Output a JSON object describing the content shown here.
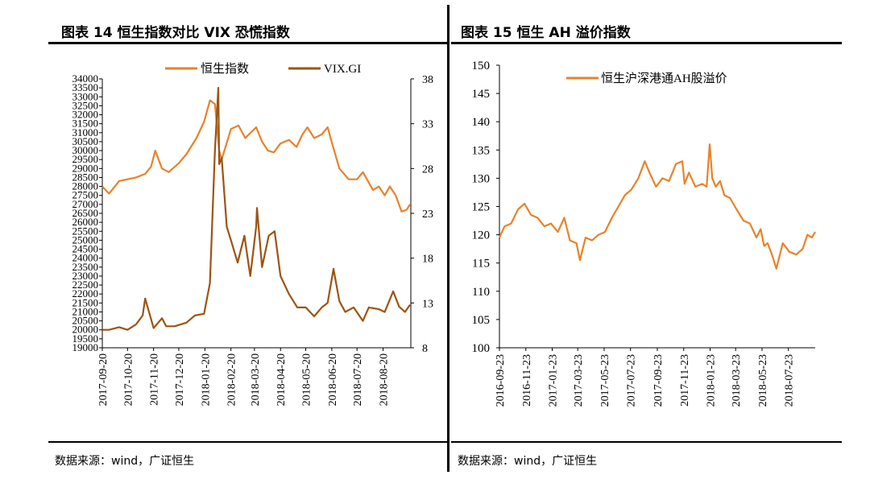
{
  "left": {
    "title": "图表 14 恒生指数对比 VIX 恐慌指数",
    "source": "数据来源：wind，广证恒生"
  },
  "right": {
    "title": "图表 15 恒生 AH 溢价指数",
    "source": "数据来源：wind，广证恒生"
  },
  "chart_data": [
    {
      "type": "line",
      "title": "",
      "x_ticks": [
        "2017-09-20",
        "2017-10-20",
        "2017-11-20",
        "2017-12-20",
        "2018-01-20",
        "2018-02-20",
        "2018-03-20",
        "2018-04-20",
        "2018-05-20",
        "2018-06-20",
        "2018-07-20",
        "2018-08-20"
      ],
      "y_left_ticks": [
        34000,
        33500,
        33000,
        32500,
        32000,
        31500,
        31000,
        30500,
        30000,
        29500,
        29000,
        28500,
        28000,
        27500,
        27000,
        26500,
        26000,
        25500,
        25000,
        24500,
        24000,
        23500,
        23000,
        22500,
        22000,
        21500,
        21000,
        20500,
        20000,
        19500,
        19000
      ],
      "y_left_range": [
        19000,
        34000
      ],
      "y_right_ticks": [
        38,
        33,
        28,
        23,
        18,
        13,
        8
      ],
      "y_right_range": [
        8,
        38
      ],
      "legend_position": "top",
      "series": [
        {
          "name": "恒生指数",
          "axis": "left",
          "color": "#E8822A",
          "x": [
            "2017-09-20",
            "2017-09-28",
            "2017-10-10",
            "2017-10-20",
            "2017-10-30",
            "2017-11-10",
            "2017-11-17",
            "2017-11-22",
            "2017-11-30",
            "2017-12-08",
            "2017-12-20",
            "2017-12-29",
            "2018-01-10",
            "2018-01-19",
            "2018-01-26",
            "2018-02-01",
            "2018-02-06",
            "2018-02-09",
            "2018-02-20",
            "2018-03-01",
            "2018-03-09",
            "2018-03-22",
            "2018-03-29",
            "2018-04-05",
            "2018-04-12",
            "2018-04-20",
            "2018-04-30",
            "2018-05-09",
            "2018-05-16",
            "2018-05-22",
            "2018-05-30",
            "2018-06-08",
            "2018-06-15",
            "2018-06-21",
            "2018-06-29",
            "2018-07-10",
            "2018-07-20",
            "2018-07-27",
            "2018-08-08",
            "2018-08-15",
            "2018-08-22",
            "2018-08-28",
            "2018-09-04",
            "2018-09-11",
            "2018-09-17",
            "2018-09-21"
          ],
          "y": [
            28000,
            27600,
            28300,
            28400,
            28500,
            28700,
            29100,
            30000,
            29000,
            28800,
            29300,
            29800,
            30700,
            31600,
            32800,
            32600,
            30000,
            29500,
            31200,
            31400,
            30700,
            31300,
            30500,
            30000,
            29900,
            30400,
            30600,
            30200,
            30900,
            31300,
            30700,
            30900,
            31300,
            30300,
            29000,
            28400,
            28400,
            28800,
            27800,
            28000,
            27500,
            28000,
            27500,
            26600,
            26700,
            27000
          ]
        },
        {
          "name": "VIX.GI",
          "axis": "right",
          "color": "#9C5412",
          "x": [
            "2017-09-20",
            "2017-09-28",
            "2017-10-10",
            "2017-10-20",
            "2017-10-30",
            "2017-11-07",
            "2017-11-10",
            "2017-11-20",
            "2017-11-30",
            "2017-12-05",
            "2017-12-15",
            "2017-12-29",
            "2018-01-08",
            "2018-01-19",
            "2018-01-26",
            "2018-02-01",
            "2018-02-05",
            "2018-02-06",
            "2018-02-09",
            "2018-02-15",
            "2018-02-20",
            "2018-02-28",
            "2018-03-08",
            "2018-03-15",
            "2018-03-22",
            "2018-03-23",
            "2018-03-29",
            "2018-04-06",
            "2018-04-13",
            "2018-04-20",
            "2018-04-30",
            "2018-05-10",
            "2018-05-20",
            "2018-05-30",
            "2018-06-08",
            "2018-06-15",
            "2018-06-22",
            "2018-06-29",
            "2018-07-06",
            "2018-07-16",
            "2018-07-27",
            "2018-08-03",
            "2018-08-15",
            "2018-08-22",
            "2018-09-01",
            "2018-09-08",
            "2018-09-15",
            "2018-09-21"
          ],
          "y": [
            10.0,
            10.0,
            10.3,
            10.0,
            10.6,
            11.6,
            13.5,
            10.2,
            11.3,
            10.4,
            10.4,
            10.8,
            11.6,
            11.8,
            15.2,
            30.0,
            37.0,
            28.5,
            29.2,
            21.5,
            20.0,
            17.5,
            20.5,
            16.0,
            21.5,
            23.6,
            17.0,
            20.5,
            21.0,
            16.0,
            14.0,
            12.5,
            12.5,
            11.5,
            12.5,
            13.0,
            16.8,
            13.2,
            12.0,
            12.5,
            11.0,
            12.5,
            12.3,
            12.0,
            14.3,
            12.6,
            12.0,
            12.8
          ]
        }
      ]
    },
    {
      "type": "line",
      "title": "",
      "x_ticks": [
        "2016-09-23",
        "2016-11-23",
        "2017-01-23",
        "2017-03-23",
        "2017-05-23",
        "2017-07-23",
        "2017-09-23",
        "2017-11-23",
        "2018-01-23",
        "2018-03-23",
        "2018-05-23",
        "2018-07-23"
      ],
      "y_ticks": [
        150,
        145,
        140,
        135,
        130,
        125,
        120,
        115,
        110,
        105,
        100
      ],
      "y_range": [
        100,
        150
      ],
      "legend_position": "top",
      "series": [
        {
          "name": "恒生沪深港通AH股溢价",
          "color": "#E8822A",
          "x": [
            "2016-09-23",
            "2016-10-05",
            "2016-10-20",
            "2016-11-05",
            "2016-11-20",
            "2016-12-05",
            "2016-12-20",
            "2017-01-05",
            "2017-01-20",
            "2017-02-05",
            "2017-02-20",
            "2017-03-05",
            "2017-03-20",
            "2017-03-28",
            "2017-04-10",
            "2017-04-25",
            "2017-05-10",
            "2017-05-25",
            "2017-06-10",
            "2017-06-25",
            "2017-07-10",
            "2017-07-25",
            "2017-08-10",
            "2017-08-25",
            "2017-09-05",
            "2017-09-20",
            "2017-10-05",
            "2017-10-20",
            "2017-11-05",
            "2017-11-20",
            "2017-11-25",
            "2017-12-05",
            "2017-12-20",
            "2018-01-05",
            "2018-01-15",
            "2018-01-22",
            "2018-01-28",
            "2018-02-05",
            "2018-02-15",
            "2018-02-25",
            "2018-03-10",
            "2018-03-25",
            "2018-04-10",
            "2018-04-25",
            "2018-05-10",
            "2018-05-20",
            "2018-05-28",
            "2018-06-05",
            "2018-06-15",
            "2018-06-25",
            "2018-07-10",
            "2018-07-25",
            "2018-08-10",
            "2018-08-25",
            "2018-09-05",
            "2018-09-15",
            "2018-09-23"
          ],
          "y": [
            119.5,
            121.5,
            122.0,
            124.5,
            125.5,
            123.5,
            123.0,
            121.5,
            122.0,
            120.5,
            123.0,
            119.0,
            118.5,
            115.5,
            119.5,
            119.0,
            120.0,
            120.5,
            123.0,
            125.0,
            127.0,
            128.0,
            130.0,
            133.0,
            131.0,
            128.5,
            130.0,
            129.5,
            132.5,
            133.0,
            129.0,
            131.0,
            128.5,
            129.0,
            128.5,
            136.0,
            130.0,
            128.5,
            129.5,
            127.0,
            126.5,
            124.5,
            122.5,
            122.0,
            119.5,
            121.0,
            118.0,
            118.5,
            116.5,
            114.0,
            118.5,
            117.0,
            116.5,
            117.5,
            120.0,
            119.5,
            120.5
          ]
        }
      ]
    }
  ]
}
